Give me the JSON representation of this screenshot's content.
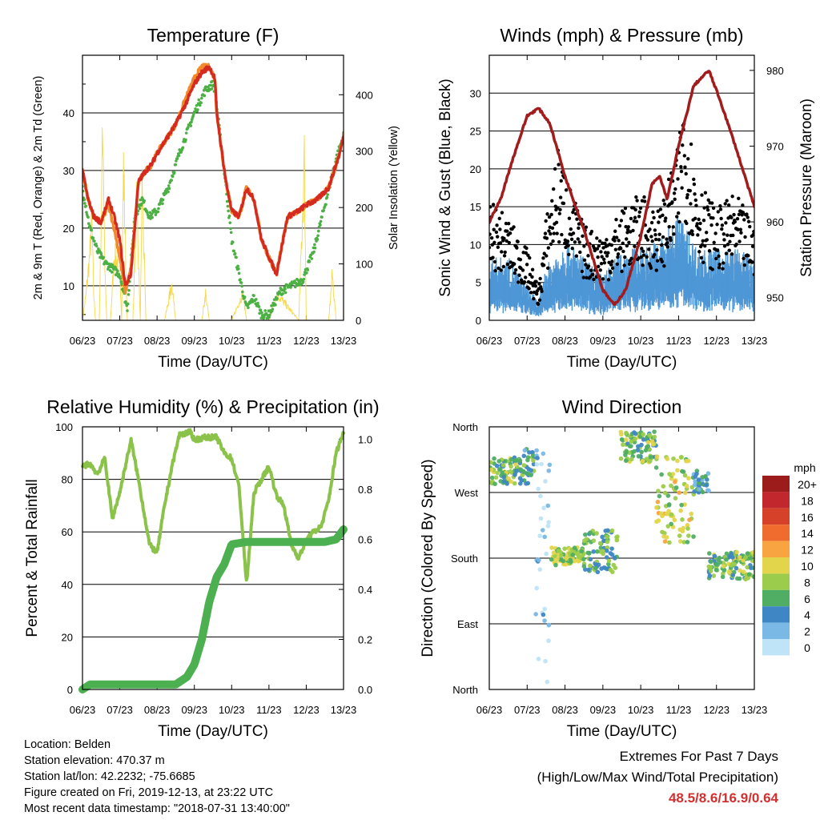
{
  "chart_data": [
    {
      "type": "line",
      "title": "Temperature (F)",
      "xlabel": "Time (Day/UTC)",
      "ylabel": "2m & 9m T (Red, Orange) & 2m Td (Green)",
      "y2label": "Solar Insolation (Yellow)",
      "x_ticks": [
        "06/23",
        "07/23",
        "08/23",
        "09/23",
        "10/23",
        "11/23",
        "12/23",
        "13/23"
      ],
      "ylim": [
        4,
        50
      ],
      "y_ticks": [
        10,
        20,
        30,
        40
      ],
      "y2lim": [
        0,
        470
      ],
      "y2_ticks": [
        0,
        100,
        200,
        300,
        400
      ],
      "grid": true,
      "colors": {
        "temp_2m": "#d42a1f",
        "temp_9m": "#f08a2c",
        "dewpoint": "#4cb045",
        "solar": "#f5d84a"
      },
      "series": [
        {
          "key": "temp_2m",
          "x": [
            0,
            0.15,
            0.3,
            0.5,
            0.7,
            0.85,
            1.0,
            1.15,
            1.3,
            1.5,
            1.7,
            1.85,
            2.0,
            2.2,
            2.5,
            2.8,
            3.0,
            3.2,
            3.4,
            3.55,
            3.6,
            3.7,
            3.85,
            4.0,
            4.2,
            4.4,
            4.6,
            4.8,
            5.0,
            5.2,
            5.5,
            5.8,
            6.0,
            6.3,
            6.6,
            6.9,
            7.0
          ],
          "values": [
            30,
            25,
            22,
            21,
            25,
            22,
            18,
            10,
            12,
            28,
            30,
            31,
            33,
            35,
            38,
            42,
            45,
            47,
            48,
            46,
            40,
            35,
            28,
            23,
            22,
            27,
            25,
            18,
            15,
            12,
            22,
            23,
            24,
            25,
            27,
            33,
            36
          ]
        },
        {
          "key": "temp_9m",
          "x": [
            0,
            0.15,
            0.3,
            0.5,
            0.7,
            0.85,
            1.0,
            1.15,
            1.3,
            1.5,
            1.7,
            1.85,
            2.0,
            2.2,
            2.5,
            2.8,
            3.0,
            3.2,
            3.4,
            3.55,
            3.6,
            3.7,
            3.85,
            4.0,
            4.2,
            4.4,
            4.6,
            4.8,
            5.0,
            5.2,
            5.5,
            5.8,
            6.0,
            6.3,
            6.6,
            6.9,
            7.0
          ],
          "values": [
            30,
            25,
            22,
            21,
            24,
            20,
            15,
            9,
            13,
            28,
            30,
            31,
            33,
            35,
            38,
            43,
            46,
            48,
            48,
            46,
            40,
            35,
            28,
            23,
            22,
            27,
            25,
            18,
            15,
            12,
            22,
            23,
            24,
            25,
            27,
            33,
            36
          ]
        },
        {
          "key": "dewpoint",
          "x": [
            0,
            0.2,
            0.4,
            0.6,
            0.8,
            1.0,
            1.2,
            1.4,
            1.6,
            1.8,
            2.0,
            2.3,
            2.6,
            3.0,
            3.3,
            3.5,
            3.55,
            3.8,
            4.0,
            4.2,
            4.4,
            4.6,
            4.8,
            5.0,
            5.3,
            5.6,
            5.9,
            6.2,
            6.5,
            6.8,
            7.0
          ],
          "values": [
            27,
            20,
            16,
            14,
            13,
            12,
            6,
            22,
            25,
            22,
            23,
            27,
            33,
            40,
            44,
            45,
            44,
            30,
            18,
            12,
            6,
            8,
            5,
            5,
            9,
            10,
            11,
            16,
            24,
            32,
            36
          ]
        },
        {
          "key": "solar",
          "x": [
            0,
            0.1,
            0.2,
            0.25,
            0.3,
            0.35,
            0.45,
            0.55,
            0.6,
            0.65,
            0.75,
            0.85,
            1.0,
            1.05,
            1.1,
            1.2,
            1.35,
            1.45,
            1.55,
            1.6,
            1.7,
            2.0,
            2.2,
            2.4,
            2.5,
            2.8,
            3.2,
            3.3,
            3.4,
            3.5,
            4.0,
            4.3,
            4.4,
            5.0,
            5.2,
            5.8,
            5.95,
            6.0,
            6.6,
            6.7,
            6.8,
            6.9
          ],
          "values": [
            0,
            60,
            150,
            220,
            60,
            0,
            0,
            440,
            120,
            0,
            0,
            140,
            120,
            0,
            340,
            0,
            0,
            260,
            0,
            300,
            0,
            0,
            0,
            80,
            0,
            0,
            0,
            60,
            0,
            0,
            0,
            60,
            0,
            0,
            60,
            0,
            350,
            0,
            0,
            100,
            0,
            0
          ]
        }
      ]
    },
    {
      "type": "scatter",
      "title": "Winds (mph) & Pressure (mb)",
      "xlabel": "Time (Day/UTC)",
      "ylabel": "Sonic Wind & Gust (Blue, Black)",
      "y2label": "Station Pressure (Maroon)",
      "x_ticks": [
        "06/23",
        "07/23",
        "08/23",
        "09/23",
        "10/23",
        "11/23",
        "12/23",
        "13/23"
      ],
      "ylim": [
        0,
        35
      ],
      "y_ticks": [
        0,
        5,
        10,
        15,
        20,
        25,
        30
      ],
      "y2lim": [
        947,
        982
      ],
      "y2_ticks": [
        950,
        960,
        970,
        980
      ],
      "grid": true,
      "colors": {
        "wind": "#4e97d6",
        "gust": "#000000",
        "pressure": "#a11d1d"
      },
      "series": [
        {
          "key": "wind_envelope",
          "x": [
            0,
            0.5,
            1.0,
            1.3,
            1.5,
            2.0,
            2.5,
            3.0,
            3.5,
            4.0,
            4.5,
            5.0,
            5.5,
            6.0,
            6.5,
            7.0
          ],
          "values": [
            7,
            7,
            4,
            2,
            6,
            9,
            7,
            5,
            8,
            8,
            9,
            12,
            8,
            8,
            8,
            7
          ]
        },
        {
          "key": "gust_envelope",
          "x": [
            0,
            0.5,
            1.0,
            1.3,
            1.5,
            1.8,
            2.2,
            2.5,
            3.0,
            3.5,
            4.0,
            4.5,
            5.0,
            5.1,
            5.5,
            6.0,
            6.5,
            7.0
          ],
          "values": [
            15,
            13,
            9,
            4,
            13,
            22,
            16,
            12,
            11,
            14,
            16,
            14,
            22,
            31,
            18,
            14,
            16,
            12
          ]
        },
        {
          "key": "pressure",
          "x": [
            0,
            0.3,
            0.6,
            1.0,
            1.3,
            1.6,
            2.0,
            2.5,
            3.0,
            3.3,
            3.6,
            4.0,
            4.3,
            4.5,
            4.7,
            5.0,
            5.4,
            5.8,
            6.1,
            6.5,
            7.0
          ],
          "values": [
            960,
            963,
            968,
            974,
            975,
            973,
            966,
            959,
            951,
            949,
            951,
            958,
            965,
            966,
            963,
            970,
            978,
            980,
            976,
            970,
            962
          ]
        }
      ]
    },
    {
      "type": "line",
      "title": "Relative Humidity (%) & Precipitation (in)",
      "xlabel": "Time (Day/UTC)",
      "ylabel": "Percent & Total Rainfall",
      "x_ticks": [
        "06/23",
        "07/23",
        "08/23",
        "09/23",
        "10/23",
        "11/23",
        "12/23",
        "13/23"
      ],
      "ylim": [
        0,
        100
      ],
      "y_ticks": [
        0,
        20,
        40,
        60,
        80,
        100
      ],
      "y2lim": [
        0,
        1.05
      ],
      "y2_ticks": [
        "0.0",
        "0.2",
        "0.4",
        "0.6",
        "0.8",
        "1.0"
      ],
      "grid": true,
      "colors": {
        "humidity": "#8bc34a",
        "rainfall": "#4caf50"
      },
      "series": [
        {
          "key": "humidity",
          "x": [
            0,
            0.2,
            0.4,
            0.6,
            0.8,
            1.0,
            1.3,
            1.5,
            1.8,
            2.0,
            2.2,
            2.4,
            2.6,
            2.9,
            3.0,
            3.3,
            3.6,
            3.8,
            4.0,
            4.2,
            4.4,
            4.6,
            4.8,
            5.0,
            5.2,
            5.4,
            5.6,
            5.8,
            6.0,
            6.2,
            6.4,
            6.6,
            6.8,
            7.0
          ],
          "values": [
            85,
            86,
            82,
            88,
            65,
            75,
            95,
            80,
            55,
            52,
            70,
            85,
            97,
            98,
            95,
            96,
            96,
            90,
            88,
            77,
            40,
            75,
            80,
            85,
            74,
            70,
            55,
            50,
            57,
            60,
            62,
            72,
            90,
            98
          ]
        },
        {
          "key": "rainfall",
          "x": [
            0,
            0.2,
            2.5,
            2.8,
            3.0,
            3.2,
            3.4,
            3.6,
            3.8,
            4.0,
            4.4,
            5.0,
            6.0,
            6.5,
            6.8,
            7.0
          ],
          "values": [
            0,
            0.02,
            0.02,
            0.05,
            0.1,
            0.2,
            0.35,
            0.45,
            0.5,
            0.58,
            0.59,
            0.59,
            0.59,
            0.59,
            0.6,
            0.64
          ]
        }
      ]
    },
    {
      "type": "scatter",
      "title": "Wind Direction",
      "xlabel": "Time (Day/UTC)",
      "ylabel": "Direction (Colored By Speed)",
      "x_ticks": [
        "06/23",
        "07/23",
        "08/23",
        "09/23",
        "10/23",
        "11/23",
        "12/23",
        "13/23"
      ],
      "y_ticks": [
        "North",
        "East",
        "South",
        "West",
        "North"
      ],
      "ylim": [
        0,
        360
      ],
      "grid": true,
      "legend": {
        "title": "mph",
        "labels": [
          "20+",
          "18",
          "16",
          "14",
          "12",
          "10",
          "8",
          "6",
          "4",
          "2",
          "0"
        ],
        "colors": [
          "#9c1b1b",
          "#c1272d",
          "#d6412a",
          "#ef6b2e",
          "#f7a441",
          "#e3d54b",
          "#9ccc4b",
          "#4fae63",
          "#3f86c4",
          "#7ab8e6",
          "#bfe3f7"
        ],
        "position": "right"
      },
      "clusters": [
        {
          "x0": 0.0,
          "x1": 0.8,
          "dir0": 280,
          "dir1": 320,
          "speed": 7
        },
        {
          "x0": 0.8,
          "x1": 1.2,
          "dir0": 280,
          "dir1": 330,
          "speed": 5
        },
        {
          "x0": 1.2,
          "x1": 1.6,
          "dir0": 0,
          "dir1": 340,
          "speed": 1
        },
        {
          "x0": 1.6,
          "x1": 2.5,
          "dir0": 170,
          "dir1": 195,
          "speed": 8
        },
        {
          "x0": 2.5,
          "x1": 3.4,
          "dir0": 160,
          "dir1": 220,
          "speed": 6
        },
        {
          "x0": 3.4,
          "x1": 4.4,
          "dir0": 310,
          "dir1": 355,
          "speed": 7
        },
        {
          "x0": 4.4,
          "x1": 5.4,
          "dir0": 200,
          "dir1": 320,
          "speed": 9
        },
        {
          "x0": 5.4,
          "x1": 5.8,
          "dir0": 270,
          "dir1": 300,
          "speed": 4
        },
        {
          "x0": 5.8,
          "x1": 7.0,
          "dir0": 150,
          "dir1": 190,
          "speed": 7
        }
      ]
    }
  ],
  "station": {
    "location": "Location: Belden",
    "elevation": "Station elevation: 470.37 m",
    "latlon": "Station lat/lon: 42.2232; -75.6685",
    "created": "Figure created on Fri, 2019-12-13, at 23:22 UTC",
    "recent": "Most recent data timestamp: \"2018-07-31 13:40:00\""
  },
  "extremes": {
    "heading": "Extremes For Past 7 Days",
    "subheading": "(High/Low/Max Wind/Total Precipitation)",
    "values": "48.5/8.6/16.9/0.64"
  }
}
